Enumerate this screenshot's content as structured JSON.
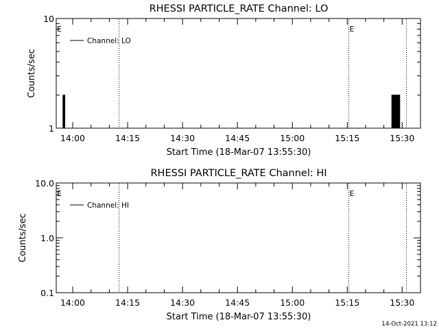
{
  "colors": {
    "background": "#ffffff",
    "foreground": "#000000"
  },
  "timestamp": "14-Oct-2021 13:12",
  "chart_data": [
    {
      "type": "line",
      "title": "RHESSI PARTICLE_RATE Channel: LO",
      "xlabel": "Start Time (18-Mar-07 13:55:30)",
      "ylabel": "Counts/sec",
      "yscale": "log",
      "xlim": [
        "13:55:30",
        "15:35:00"
      ],
      "ylim": [
        1,
        10
      ],
      "x_ticks": [
        "14:00",
        "14:15",
        "14:30",
        "14:45",
        "15:00",
        "15:15",
        "15:30"
      ],
      "y_ticks": [
        "1",
        "10"
      ],
      "grid": false,
      "legend": "top-left",
      "series": [
        {
          "name": "Channel: LO",
          "x": [
            "13:57:15",
            "13:57:20",
            "13:57:20",
            "13:57:30",
            "13:57:30",
            "13:57:40",
            "13:57:40",
            "13:57:50",
            "13:57:50",
            "15:27:00",
            "15:27:10",
            "15:27:10",
            "15:27:20",
            "15:27:20",
            "15:27:30",
            "15:27:30",
            "15:27:40",
            "15:27:40",
            "15:27:50",
            "15:27:50",
            "15:28:00",
            "15:28:00",
            "15:28:10",
            "15:28:10",
            "15:28:20",
            "15:28:20",
            "15:28:30",
            "15:28:30",
            "15:28:40",
            "15:28:40",
            "15:28:50",
            "15:28:50",
            "15:29:00",
            "15:29:00",
            "15:29:10",
            "15:29:10",
            "15:29:20",
            "15:29:20",
            "15:29:40"
          ],
          "y": [
            1,
            1,
            2,
            2,
            1,
            1,
            2,
            2,
            1,
            1,
            1,
            2,
            2,
            1,
            1,
            2,
            2,
            1,
            1,
            2,
            2,
            1,
            1,
            2,
            2,
            1,
            1,
            2,
            2,
            1,
            1,
            2,
            2,
            1,
            1,
            2,
            2,
            1,
            1
          ]
        }
      ],
      "vlines": [
        {
          "x": "14:12:40",
          "label": ""
        },
        {
          "x": "15:15:25",
          "label": "E"
        },
        {
          "x": "15:31:10",
          "label": ""
        }
      ],
      "corner_mark": "E"
    },
    {
      "type": "line",
      "title": "RHESSI PARTICLE_RATE Channel: HI",
      "xlabel": "Start Time (18-Mar-07 13:55:30)",
      "ylabel": "Counts/sec",
      "yscale": "log",
      "xlim": [
        "13:55:30",
        "15:35:00"
      ],
      "ylim": [
        0.1,
        10
      ],
      "x_ticks": [
        "14:00",
        "14:15",
        "14:30",
        "14:45",
        "15:00",
        "15:15",
        "15:30"
      ],
      "y_ticks": [
        "0.1",
        "1.0",
        "10.0"
      ],
      "grid": false,
      "legend": "top-left",
      "series": [
        {
          "name": "Channel: HI",
          "x": [],
          "y": []
        }
      ],
      "vlines": [
        {
          "x": "14:12:40",
          "label": ""
        },
        {
          "x": "15:15:25",
          "label": "E"
        },
        {
          "x": "15:31:10",
          "label": ""
        }
      ],
      "corner_mark": "E"
    }
  ]
}
